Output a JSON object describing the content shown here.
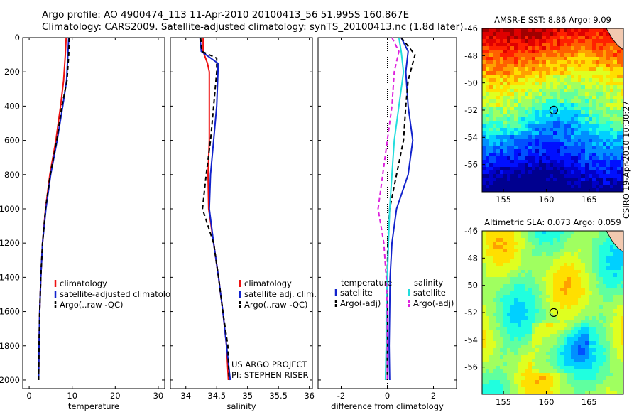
{
  "header": {
    "line1": "Argo profile: AO 4900474_113 11-Apr-2010 20100413_56 51.995S 160.867E",
    "line2": "Climatology: CARS2009. Satellite-adjusted climatology: synTS_20100413.nc (1.8d later)"
  },
  "side_label": "CSIRO 19-Apr-2010 10:30:27",
  "project": {
    "line1": "US ARGO PROJECT",
    "line2": "PI: STEPHEN RISER"
  },
  "colors": {
    "clim": "#ee1111",
    "sat": "#1122cc",
    "argo": "#000000",
    "sat_diff": "#22dddd",
    "argo_diff": "#dd22dd"
  },
  "chart_data": [
    {
      "type": "line",
      "id": "temperature",
      "xlabel": "temperature",
      "xlim": [
        -1.5,
        31.5
      ],
      "ylim": [
        0,
        2050
      ],
      "y_reversed": true,
      "xticks": [
        0,
        10,
        20,
        30
      ],
      "yticks": [
        0,
        200,
        400,
        600,
        800,
        1000,
        1200,
        1400,
        1600,
        1800,
        2000
      ],
      "legend": [
        "climatology",
        "satellite-adjusted climatology",
        "Argo(..raw -QC)"
      ],
      "series": [
        {
          "name": "climatology",
          "style": "clim",
          "points": [
            [
              8.6,
              0
            ],
            [
              8.4,
              100
            ],
            [
              8.0,
              250
            ],
            [
              7.3,
              400
            ],
            [
              6.2,
              600
            ],
            [
              4.8,
              800
            ],
            [
              3.8,
              1000
            ],
            [
              3.1,
              1200
            ],
            [
              2.7,
              1400
            ],
            [
              2.45,
              1600
            ],
            [
              2.3,
              1800
            ],
            [
              2.2,
              2000
            ]
          ]
        },
        {
          "name": "satellite-adjusted climatology",
          "style": "sat",
          "points": [
            [
              9.2,
              0
            ],
            [
              9.0,
              100
            ],
            [
              8.7,
              250
            ],
            [
              7.8,
              400
            ],
            [
              6.5,
              600
            ],
            [
              5.0,
              800
            ],
            [
              3.9,
              1000
            ],
            [
              3.1,
              1200
            ],
            [
              2.7,
              1400
            ],
            [
              2.45,
              1600
            ],
            [
              2.3,
              1800
            ],
            [
              2.2,
              2000
            ]
          ]
        },
        {
          "name": "Argo(..raw -QC)",
          "style": "argo",
          "points": [
            [
              9.3,
              0
            ],
            [
              9.2,
              100
            ],
            [
              8.8,
              250
            ],
            [
              7.6,
              400
            ],
            [
              6.4,
              600
            ],
            [
              4.9,
              800
            ],
            [
              3.8,
              1000
            ],
            [
              3.1,
              1200
            ],
            [
              2.7,
              1400
            ],
            [
              2.45,
              1600
            ],
            [
              2.3,
              1800
            ],
            [
              2.2,
              2000
            ]
          ]
        }
      ]
    },
    {
      "type": "line",
      "id": "salinity",
      "xlabel": "salinity",
      "xlim": [
        33.75,
        36.05
      ],
      "ylim": [
        0,
        2050
      ],
      "y_reversed": true,
      "xticks": [
        34,
        34.5,
        35,
        35.5,
        36
      ],
      "xticklabels": [
        "34",
        "34.5",
        "35",
        "35.5",
        "36"
      ],
      "legend": [
        "climatology",
        "satellite adj. clim.",
        "Argo(..raw -QC)"
      ],
      "series": [
        {
          "name": "climatology",
          "style": "clim",
          "points": [
            [
              34.28,
              0
            ],
            [
              34.28,
              80
            ],
            [
              34.35,
              150
            ],
            [
              34.38,
              200
            ],
            [
              34.38,
              400
            ],
            [
              34.38,
              600
            ],
            [
              34.36,
              800
            ],
            [
              34.37,
              1000
            ],
            [
              34.45,
              1200
            ],
            [
              34.53,
              1400
            ],
            [
              34.6,
              1600
            ],
            [
              34.66,
              1800
            ],
            [
              34.69,
              2000
            ]
          ]
        },
        {
          "name": "satellite adj. clim.",
          "style": "sat",
          "points": [
            [
              34.23,
              0
            ],
            [
              34.25,
              80
            ],
            [
              34.52,
              150
            ],
            [
              34.52,
              200
            ],
            [
              34.5,
              400
            ],
            [
              34.45,
              600
            ],
            [
              34.4,
              800
            ],
            [
              34.38,
              1000
            ],
            [
              34.45,
              1200
            ],
            [
              34.53,
              1400
            ],
            [
              34.6,
              1600
            ],
            [
              34.66,
              1800
            ],
            [
              34.72,
              2000
            ]
          ]
        },
        {
          "name": "Argo(..raw -QC)",
          "style": "argo",
          "points": [
            [
              34.24,
              0
            ],
            [
              34.26,
              80
            ],
            [
              34.5,
              120
            ],
            [
              34.5,
              200
            ],
            [
              34.45,
              400
            ],
            [
              34.4,
              600
            ],
            [
              34.33,
              800
            ],
            [
              34.27,
              1000
            ],
            [
              34.45,
              1200
            ],
            [
              34.53,
              1400
            ],
            [
              34.6,
              1600
            ],
            [
              34.68,
              1800
            ],
            [
              34.7,
              2000
            ]
          ]
        }
      ]
    },
    {
      "type": "line",
      "id": "difference",
      "xlabel": "difference from climatology",
      "xlim": [
        -3,
        3
      ],
      "ylim": [
        0,
        2050
      ],
      "y_reversed": true,
      "xticks": [
        -2,
        0,
        2
      ],
      "zero_line": true,
      "legend_left_title": "temperature",
      "legend_right_title": "salinity",
      "legend_left": [
        "satellite",
        "Argo(-adj)"
      ],
      "legend_right": [
        "satellite",
        "Argo(-adj)"
      ],
      "series": [
        {
          "name": "temperature satellite",
          "style": "sat",
          "points": [
            [
              0.6,
              0
            ],
            [
              0.9,
              80
            ],
            [
              0.8,
              200
            ],
            [
              0.9,
              400
            ],
            [
              1.1,
              600
            ],
            [
              0.9,
              800
            ],
            [
              0.4,
              1000
            ],
            [
              0.2,
              1200
            ],
            [
              0.12,
              1400
            ],
            [
              0.1,
              1600
            ],
            [
              0.08,
              1800
            ],
            [
              0.1,
              2000
            ]
          ]
        },
        {
          "name": "temperature Argo(-adj)",
          "style": "argo",
          "points": [
            [
              0.6,
              0
            ],
            [
              1.2,
              100
            ],
            [
              0.9,
              250
            ],
            [
              0.8,
              400
            ],
            [
              0.7,
              600
            ],
            [
              0.4,
              800
            ],
            [
              0.1,
              1000
            ],
            [
              0.02,
              1200
            ],
            [
              0.0,
              1400
            ],
            [
              0.0,
              1600
            ],
            [
              0.0,
              1800
            ],
            [
              0.0,
              2000
            ]
          ]
        },
        {
          "name": "salinity satellite",
          "style": "sat_diff",
          "points": [
            [
              0.5,
              0
            ],
            [
              0.6,
              80
            ],
            [
              0.7,
              200
            ],
            [
              0.5,
              400
            ],
            [
              0.3,
              600
            ],
            [
              0.2,
              800
            ],
            [
              0.1,
              1000
            ],
            [
              0.05,
              1200
            ],
            [
              0.0,
              1400
            ],
            [
              -0.05,
              1600
            ],
            [
              -0.05,
              1800
            ],
            [
              -0.08,
              2000
            ]
          ]
        },
        {
          "name": "salinity Argo(-adj)",
          "style": "argo_diff",
          "points": [
            [
              0.2,
              0
            ],
            [
              0.5,
              80
            ],
            [
              0.3,
              200
            ],
            [
              0.2,
              400
            ],
            [
              0.0,
              600
            ],
            [
              -0.2,
              800
            ],
            [
              -0.4,
              1000
            ],
            [
              -0.15,
              1200
            ],
            [
              -0.05,
              1400
            ],
            [
              0.0,
              1600
            ],
            [
              0.0,
              1800
            ],
            [
              0.0,
              2000
            ]
          ]
        }
      ]
    },
    {
      "type": "heatmap",
      "id": "sst_map",
      "title": "AMSR-E SST: 8.86 Argo: 9.09",
      "xlim": [
        152.5,
        169
      ],
      "ylim": [
        -58,
        -46
      ],
      "xticks": [
        155,
        160,
        165
      ],
      "yticks": [
        -46,
        -48,
        -50,
        -52,
        -54,
        -56
      ],
      "marker": [
        160.867,
        -51.995
      ]
    },
    {
      "type": "heatmap",
      "id": "sla_map",
      "title": "Altimetric SLA: 0.073 Argo: 0.059",
      "xlim": [
        152.5,
        169
      ],
      "ylim": [
        -58,
        -46
      ],
      "xticks": [
        155,
        160,
        165
      ],
      "yticks": [
        -46,
        -48,
        -50,
        -52,
        -54,
        -56
      ],
      "marker": [
        160.867,
        -51.995
      ]
    }
  ]
}
